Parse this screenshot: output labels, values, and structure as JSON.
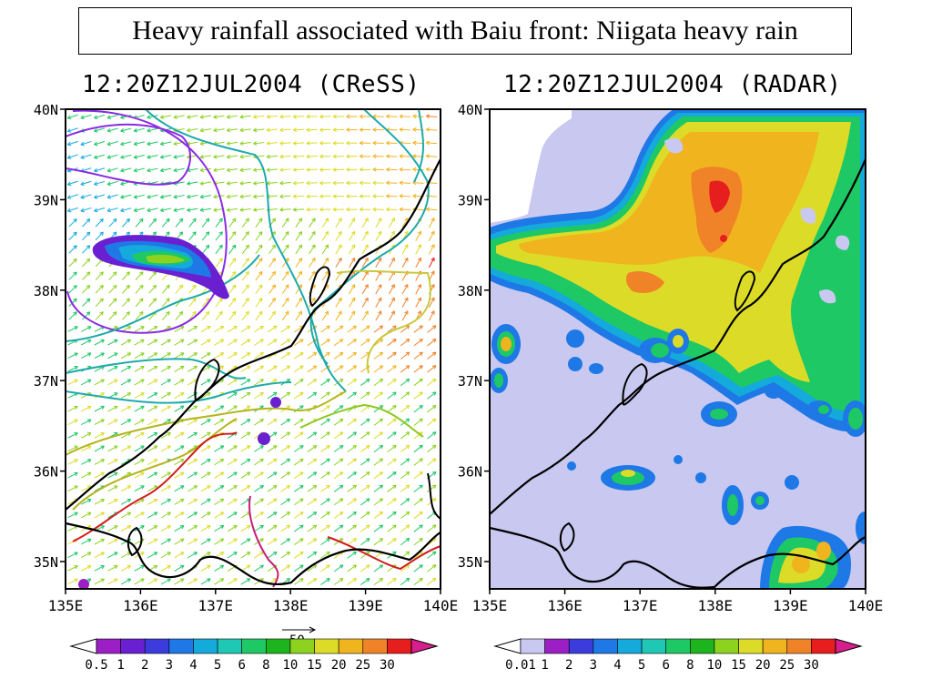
{
  "page": {
    "title": "Heavy rainfall associated with Baiu front: Niigata heavy rain"
  },
  "panels": [
    {
      "id": "cress",
      "title": "12:20Z12JUL2004 (CReSS)",
      "lat_labels": [
        "40N",
        "39N",
        "38N",
        "37N",
        "36N",
        "35N"
      ],
      "lon_labels": [
        "135E",
        "136E",
        "137E",
        "138E",
        "139E",
        "140E"
      ],
      "colorbar": {
        "labels": [
          "0.5",
          "1",
          "2",
          "3",
          "4",
          "5",
          "6",
          "8",
          "10",
          "15",
          "20",
          "25",
          "30"
        ],
        "colors": [
          "#ffffff",
          "#9b1fc4",
          "#6a1fd1",
          "#3c3cdc",
          "#1e78e6",
          "#14aadc",
          "#1ec8b4",
          "#1ec864",
          "#1eb41e",
          "#8cd21e",
          "#dcdc28",
          "#f0b41e",
          "#f08228",
          "#e61e1e",
          "#d81e8c"
        ]
      },
      "vector_reference": "50"
    },
    {
      "id": "radar",
      "title": "12:20Z12JUL2004 (RADAR)",
      "lat_labels": [
        "40N",
        "39N",
        "38N",
        "37N",
        "36N",
        "35N"
      ],
      "lon_labels": [
        "135E",
        "136E",
        "137E",
        "138E",
        "139E",
        "140E"
      ],
      "colorbar": {
        "labels": [
          "0.01",
          "1",
          "2",
          "3",
          "4",
          "5",
          "6",
          "8",
          "10",
          "15",
          "20",
          "25",
          "30"
        ],
        "colors": [
          "#ffffff",
          "#c8c8f0",
          "#9b1fc4",
          "#3c3cdc",
          "#1e78e6",
          "#14aadc",
          "#1ec8b4",
          "#1ec864",
          "#1eb41e",
          "#8cd21e",
          "#dcdc28",
          "#f0b41e",
          "#f08228",
          "#e61e1e",
          "#d81e8c"
        ]
      }
    }
  ]
}
